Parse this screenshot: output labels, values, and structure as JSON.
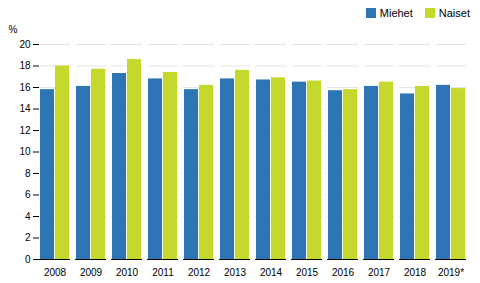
{
  "chart_data": {
    "type": "bar",
    "ylabel": "%",
    "categories": [
      "2008",
      "2009",
      "2010",
      "2011",
      "2012",
      "2013",
      "2014",
      "2015",
      "2016",
      "2017",
      "2018",
      "2019*"
    ],
    "series": [
      {
        "name": "Miehet",
        "color": "#2E75B6",
        "values": [
          15.8,
          16.1,
          17.3,
          16.8,
          15.8,
          16.8,
          16.7,
          16.5,
          15.7,
          16.1,
          15.4,
          16.2
        ]
      },
      {
        "name": "Naiset",
        "color": "#C5D92D",
        "values": [
          18.0,
          17.7,
          18.6,
          17.4,
          16.2,
          17.6,
          16.9,
          16.6,
          15.8,
          16.5,
          16.1,
          15.9
        ]
      }
    ],
    "ylim": [
      0,
      20
    ],
    "yticks": [
      0,
      2,
      4,
      6,
      8,
      10,
      12,
      14,
      16,
      18,
      20
    ],
    "grid": true,
    "legend": "upper right"
  }
}
